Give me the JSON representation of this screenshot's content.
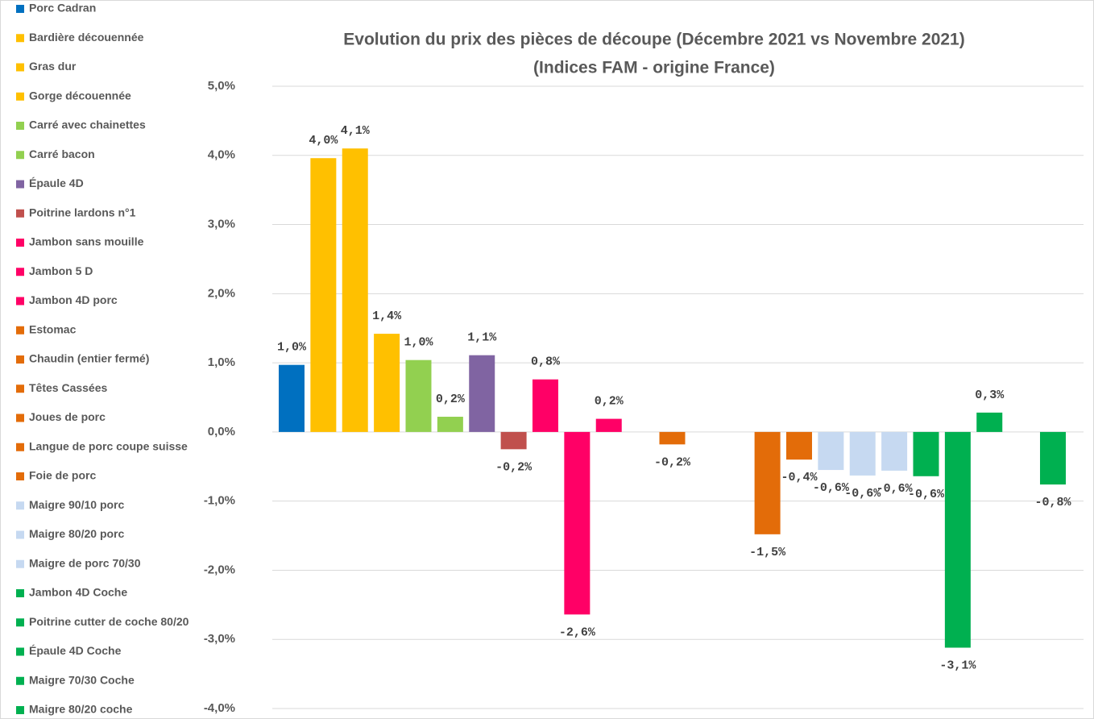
{
  "chart_data": {
    "type": "bar",
    "title": "Evolution du prix des pièces de découpe (Décembre 2021 vs Novembre 2021)",
    "subtitle": "(Indices FAM - origine France)",
    "categories": [
      "Porc Cadran",
      "Bardière découennée",
      "Gras dur",
      "Gorge découennée",
      "Carré avec chainettes",
      "Carré bacon",
      "Épaule 4D",
      "Poitrine lardons n°1",
      "Jambon sans mouille",
      "Jambon 5 D",
      "Jambon 4D porc",
      "Estomac",
      "Chaudin (entier fermé)",
      "Têtes Cassées",
      "Joues de porc",
      "Langue de porc coupe suisse",
      "Foie de porc",
      "Maigre 90/10 porc",
      "Maigre 80/20 porc",
      "Maigre de porc 70/30",
      "Jambon 4D Coche",
      "Poitrine cutter de coche 80/20",
      "Épaule 4D Coche",
      "Maigre 70/30 Coche",
      "Maigre 80/20 coche"
    ],
    "values": [
      0.97,
      3.96,
      4.1,
      1.42,
      1.04,
      0.22,
      1.11,
      -0.25,
      0.76,
      -2.64,
      0.19,
      null,
      -0.18,
      null,
      null,
      -1.48,
      -0.4,
      -0.55,
      -0.63,
      -0.56,
      -0.64,
      -3.12,
      0.28,
      null,
      -0.76
    ],
    "value_labels": [
      "1,0%",
      "4,0%",
      "4,1%",
      "1,4%",
      "1,0%",
      "0,2%",
      "1,1%",
      "-0,2%",
      "0,8%",
      "-2,6%",
      "0,2%",
      null,
      "-0,2%",
      null,
      null,
      "-1,5%",
      "-0,4%",
      "-0,6%",
      "-0,6%",
      "-0,6%",
      "-0,6%",
      "-3,1%",
      "0,3%",
      null,
      "-0,8%"
    ],
    "colors": [
      "#0070c0",
      "#ffc000",
      "#ffc000",
      "#ffc000",
      "#92d050",
      "#92d050",
      "#8064a2",
      "#c0504d",
      "#ff0066",
      "#ff0066",
      "#ff0066",
      "#e36c09",
      "#e36c09",
      "#e36c09",
      "#e36c09",
      "#e36c09",
      "#e36c09",
      "#c6d9f1",
      "#c6d9f1",
      "#c6d9f1",
      "#00b050",
      "#00b050",
      "#00b050",
      "#00b050",
      "#00b050"
    ],
    "ylim": [
      -4,
      5
    ],
    "yticks": [
      {
        "value": -4,
        "label": "-4,0%"
      },
      {
        "value": -3,
        "label": "-3,0%"
      },
      {
        "value": -2,
        "label": "-2,0%"
      },
      {
        "value": -1,
        "label": "-1,0%"
      },
      {
        "value": 0,
        "label": "0,0%"
      },
      {
        "value": 1,
        "label": "1,0%"
      },
      {
        "value": 2,
        "label": "2,0%"
      },
      {
        "value": 3,
        "label": "3,0%"
      },
      {
        "value": 4,
        "label": "4,0%"
      },
      {
        "value": 5,
        "label": "5,0%"
      }
    ],
    "grid": true,
    "legend": "left"
  }
}
